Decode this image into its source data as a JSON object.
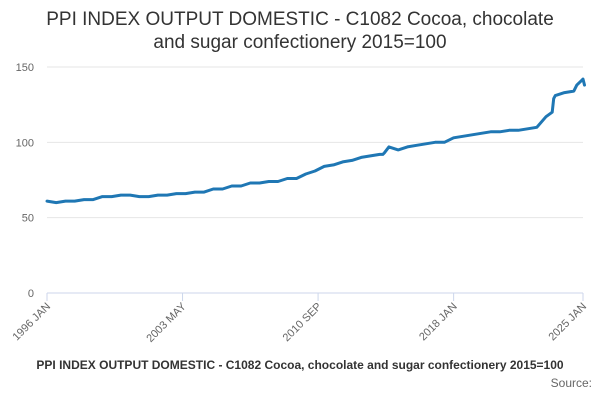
{
  "chart_data": {
    "type": "line",
    "title_lines": [
      "PPI INDEX OUTPUT DOMESTIC - C1082 Cocoa, chocolate",
      "and sugar confectionery 2015=100"
    ],
    "caption": "PPI INDEX OUTPUT DOMESTIC - C1082 Cocoa, chocolate and sugar confectionery 2015=100",
    "source_label": "Source:",
    "xlabel": "",
    "ylabel": "",
    "y_ticks": [
      0,
      50,
      100,
      150
    ],
    "ylim": [
      0,
      150
    ],
    "x_ticks": [
      "1996 JAN",
      "2003 MAY",
      "2010 SEP",
      "2018 JAN",
      "2025 JAN"
    ],
    "grid": true,
    "legend": "none",
    "color": "#1f77b4",
    "series": [
      {
        "x": [
          "1996 JAN",
          "1996 JUL",
          "1997 JAN",
          "1997 JUL",
          "1998 JAN",
          "1998 JUL",
          "1999 JAN",
          "1999 JUL",
          "2000 JAN",
          "2000 JUL",
          "2001 JAN",
          "2001 JUL",
          "2002 JAN",
          "2002 JUL",
          "2003 JAN",
          "2003 JUL",
          "2004 JAN",
          "2004 JUL",
          "2005 JAN",
          "2005 JUL",
          "2006 JAN",
          "2006 JUL",
          "2007 JAN",
          "2007 JUL",
          "2008 JAN",
          "2008 JUL",
          "2009 JAN",
          "2009 JUL",
          "2010 JAN",
          "2010 JUL",
          "2011 JAN",
          "2011 JUL",
          "2012 JAN",
          "2012 JUL",
          "2013 JAN",
          "2013 JUL",
          "2014 JAN",
          "2014 MAR",
          "2014 APR",
          "2014 JUL",
          "2015 JAN",
          "2015 JUL",
          "2016 JAN",
          "2016 JUL",
          "2017 JAN",
          "2017 JUL",
          "2018 JAN",
          "2018 JUL",
          "2019 JAN",
          "2019 JUL",
          "2020 JAN",
          "2020 JUL",
          "2021 JAN",
          "2021 JUL",
          "2022 JAN",
          "2022 JUL",
          "2023 JAN",
          "2023 MAY",
          "2023 JUN",
          "2023 JUL",
          "2024 JAN",
          "2024 JUL",
          "2024 SEP",
          "2024 DEC",
          "2025 JAN",
          "2025 FEB"
        ],
        "values": [
          61,
          60,
          61,
          61,
          62,
          62,
          64,
          64,
          65,
          65,
          64,
          64,
          65,
          65,
          66,
          66,
          67,
          67,
          69,
          69,
          71,
          71,
          73,
          73,
          74,
          74,
          76,
          76,
          79,
          81,
          84,
          85,
          87,
          88,
          90,
          91,
          92,
          92,
          93,
          97,
          95,
          97,
          98,
          99,
          100,
          100,
          103,
          104,
          105,
          106,
          107,
          107,
          108,
          108,
          109,
          110,
          117,
          120,
          129,
          131,
          133,
          134,
          138,
          141,
          142,
          138
        ]
      }
    ]
  }
}
